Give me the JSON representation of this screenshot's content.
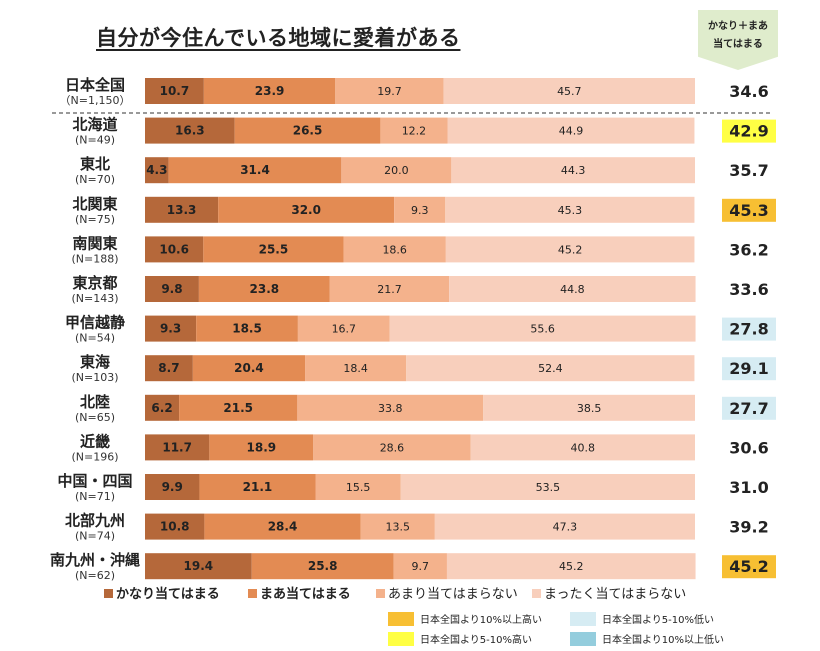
{
  "title": "自分が今住んでいる地域に愛着がある",
  "combined_header": [
    "かなり＋まあ",
    "当てはまる"
  ],
  "chart_data": {
    "type": "bar",
    "orientation": "horizontal",
    "stacked": true,
    "percent": true,
    "title": "自分が今住んでいる地域に愛着がある",
    "categories": [
      {
        "name": "日本全国",
        "n": "（N=1,150）"
      },
      {
        "name": "北海道",
        "n": "(N=49)"
      },
      {
        "name": "東北",
        "n": "(N=70)"
      },
      {
        "name": "北関東",
        "n": "(N=75)"
      },
      {
        "name": "南関東",
        "n": "(N=188)"
      },
      {
        "name": "東京都",
        "n": "(N=143)"
      },
      {
        "name": "甲信越静",
        "n": "(N=54)"
      },
      {
        "name": "東海",
        "n": "(N=103)"
      },
      {
        "name": "北陸",
        "n": "(N=65)"
      },
      {
        "name": "近畿",
        "n": "(N=196)"
      },
      {
        "name": "中国・四国",
        "n": "(N=71)"
      },
      {
        "name": "北部九州",
        "n": "(N=74)"
      },
      {
        "name": "南九州・沖縄",
        "n": "(N=62)"
      }
    ],
    "series": [
      {
        "name": "かなり当てはまる",
        "color": "#b5683a",
        "bold": true,
        "values": [
          10.7,
          16.3,
          4.3,
          13.3,
          10.6,
          9.8,
          9.3,
          8.7,
          6.2,
          11.7,
          9.9,
          10.8,
          19.4
        ]
      },
      {
        "name": "まあ当てはまる",
        "color": "#e38b53",
        "bold": true,
        "values": [
          23.9,
          26.5,
          31.4,
          32.0,
          25.5,
          23.8,
          18.5,
          20.4,
          21.5,
          18.9,
          21.1,
          28.4,
          25.8
        ]
      },
      {
        "name": "あまり当てはまらない",
        "color": "#f4b28c",
        "bold": false,
        "values": [
          19.7,
          12.2,
          20.0,
          9.3,
          18.6,
          21.7,
          16.7,
          18.4,
          33.8,
          28.6,
          15.5,
          13.5,
          9.7
        ]
      },
      {
        "name": "まったく当てはまらない",
        "color": "#f8cfbc",
        "bold": false,
        "values": [
          45.7,
          44.9,
          44.3,
          45.3,
          45.2,
          44.8,
          55.6,
          52.4,
          38.5,
          40.8,
          53.5,
          47.3,
          45.2
        ]
      }
    ],
    "combined": {
      "label": "かなり＋まあ当てはまる",
      "values": [
        "34.6",
        "42.9",
        "35.7",
        "45.3",
        "36.2",
        "33.6",
        "27.8",
        "29.1",
        "27.7",
        "30.6",
        "31.0",
        "39.2",
        "45.2"
      ],
      "highlight": [
        "none",
        "high5",
        "none",
        "high10",
        "none",
        "none",
        "low5",
        "low5",
        "low5",
        "none",
        "none",
        "none",
        "high10"
      ]
    },
    "highlight_legend": [
      {
        "key": "high10",
        "label": "日本全国より10%以上高い",
        "color": "#f7bf33"
      },
      {
        "key": "low5",
        "label": "日本全国より5-10%低い",
        "color": "#d6ecf3"
      },
      {
        "key": "high5",
        "label": "日本全国より5-10%高い",
        "color": "#ffff44"
      },
      {
        "key": "low10",
        "label": "日本全国より10%以上低い",
        "color": "#94cddd"
      }
    ]
  }
}
